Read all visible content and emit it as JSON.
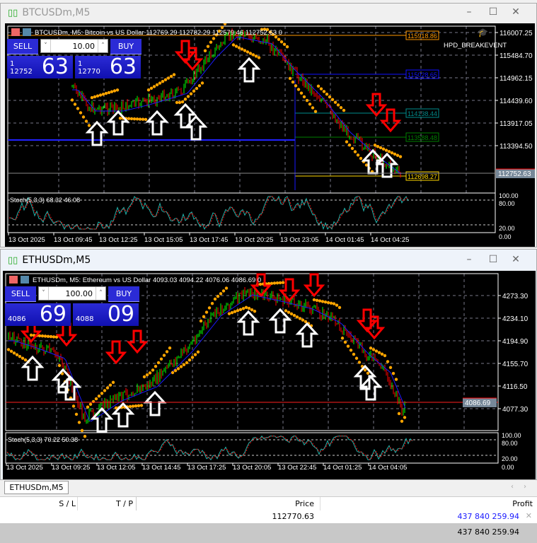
{
  "windows": [
    {
      "title": "BTCUSDm,M5",
      "active": false,
      "header": "BTCUSDm, M5:  Bitcoin vs US Dollar  112769.29 112782.29 112579.46 112752.63  0",
      "panel": {
        "sell": "SELL",
        "buy": "BUY",
        "lot": "10.00",
        "bid_small": "1\n12752",
        "bid_big": "63",
        "ask_small": "1\n12770",
        "ask_big": "63"
      },
      "ea_label": "HPD_BREAKEVENT",
      "price_axis": [
        "116007.25",
        "115484.70",
        "114962.15",
        "114439.60",
        "113917.05",
        "113394.50"
      ],
      "current_price": "112752.63",
      "levels": [
        {
          "value": "115918.86",
          "color": "#ff9900"
        },
        {
          "value": "115028.65",
          "color": "#1010ff"
        },
        {
          "value": "114138.44",
          "color": "#008b8b"
        },
        {
          "value": "113588.48",
          "color": "#008000"
        },
        {
          "value": "112698.27",
          "color": "#ffd700"
        }
      ],
      "stoch": {
        "label": "Stoch(5,3,3) 68.32 46.08",
        "axis": [
          "100.00",
          "80.00",
          "20.00",
          "0.00"
        ]
      },
      "time_axis": [
        "13 Oct 2025",
        "13 Oct 09:45",
        "13 Oct 12:25",
        "13 Oct 15:05",
        "13 Oct 17:45",
        "13 Oct 20:25",
        "13 Oct 23:05",
        "14 Oct 01:45",
        "14 Oct 04:25"
      ]
    },
    {
      "title": "ETHUSDm,M5",
      "active": true,
      "header": "ETHUSDm, M5:  Ethereum vs US Dollar  4093.03 4094.22 4076.06 4086.69  0",
      "panel": {
        "sell": "SELL",
        "buy": "BUY",
        "lot": "100.00",
        "bid_small": "4086",
        "bid_big": "69",
        "ask_small": "4088",
        "ask_big": "09"
      },
      "price_axis": [
        "4273.30",
        "4234.10",
        "4194.90",
        "4155.70",
        "4116.50",
        "4077.30"
      ],
      "current_price": "4086.69",
      "stoch": {
        "label": "Stoch(5,3,3) 70.22 50.38",
        "axis": [
          "100.00",
          "80.00",
          "20.00",
          "0.00"
        ]
      },
      "time_axis": [
        "13 Oct 2025",
        "13 Oct 09:25",
        "13 Oct 12:05",
        "13 Oct 14:45",
        "13 Oct 17:25",
        "13 Oct 20:05",
        "13 Oct 22:45",
        "14 Oct 01:25",
        "14 Oct 04:05"
      ]
    }
  ],
  "tabs": [
    {
      "label": "ETHUSDm,M5"
    }
  ],
  "trade_table": {
    "columns": [
      "S / L",
      "T / P",
      "Price",
      "Profit"
    ],
    "row": {
      "price": "112770.63",
      "profit": "437 840 259.94"
    },
    "total": "437 840 259.94"
  },
  "colors": {
    "bull": "#00ff00",
    "bear": "#ff0000",
    "psar": "#ffa500",
    "ma": "#1a1aff",
    "stoch_main": "#20b2aa",
    "stoch_signal": "#ff0000",
    "profit": "#1a1aff"
  }
}
